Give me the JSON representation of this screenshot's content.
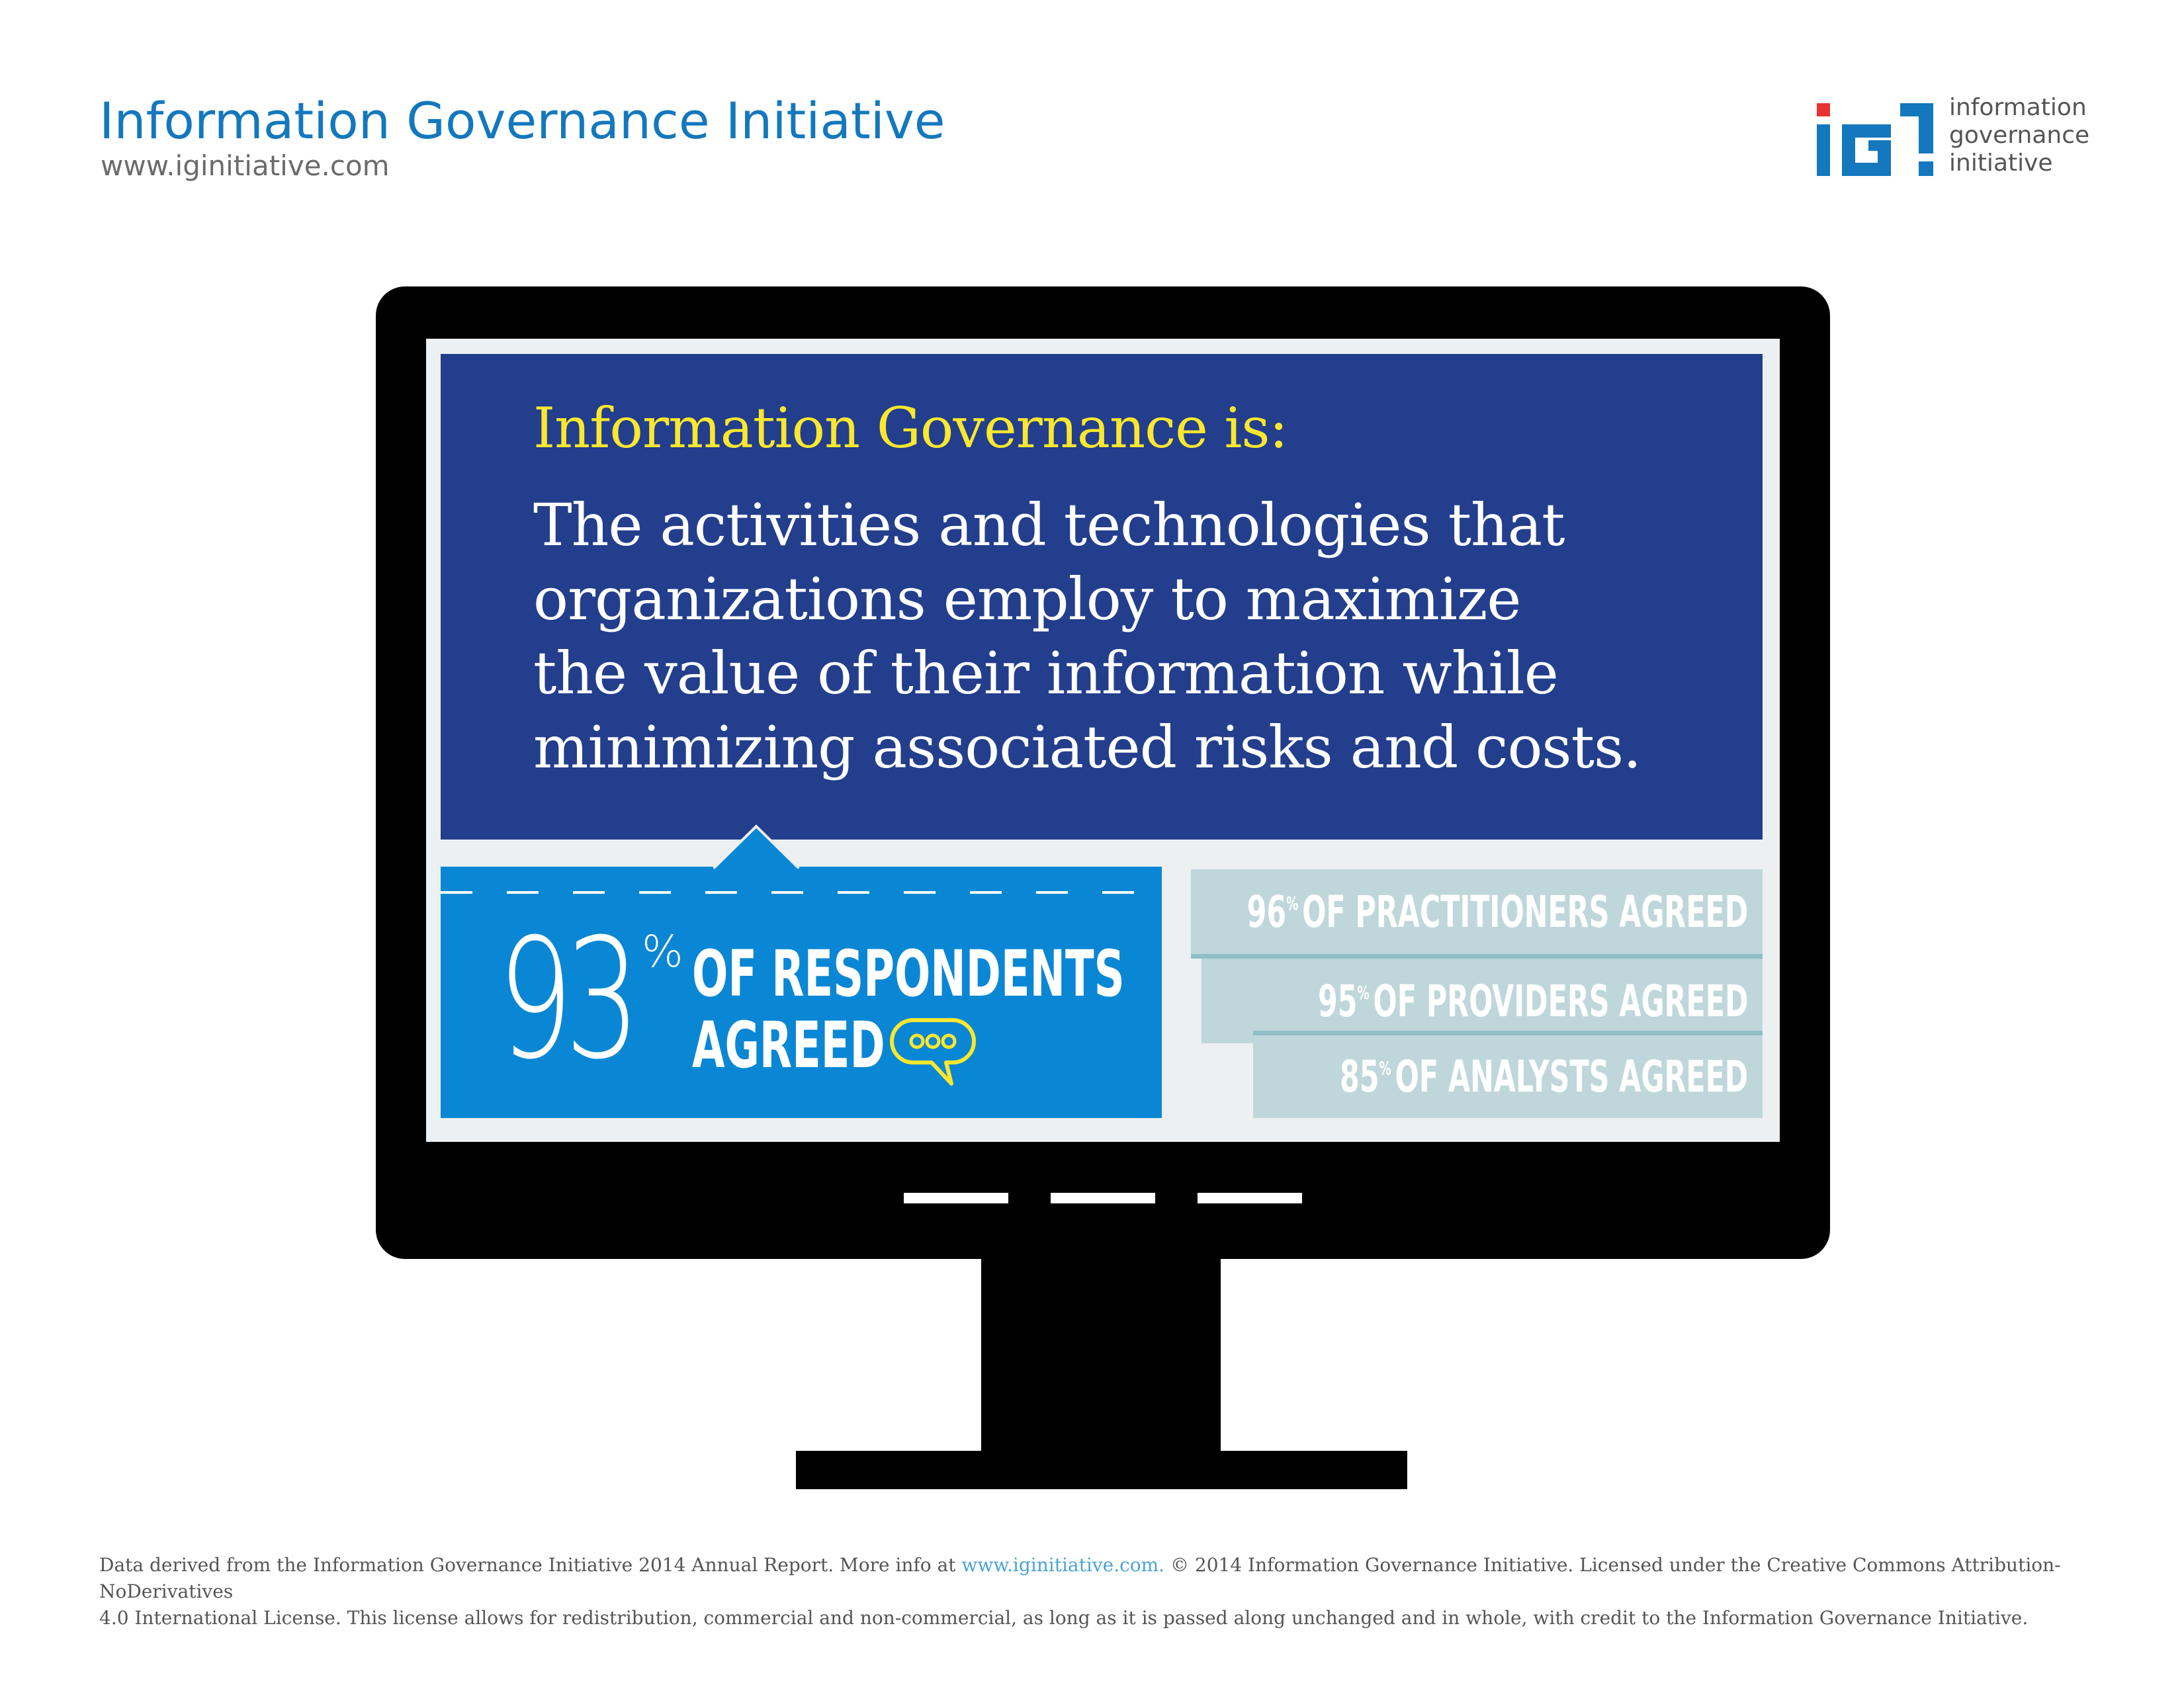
{
  "header": {
    "title": "Information Governance Initiative",
    "url": "www.iginitiative.com"
  },
  "logo": {
    "lines": [
      "information",
      "governance",
      "initiative"
    ],
    "colors": {
      "blue": "#1378bd",
      "red": "#e8342f"
    }
  },
  "definition": {
    "heading": "Information Governance is:",
    "lines": [
      "The activities and technologies that",
      "organizations employ to maximize",
      "the value of their information while",
      "minimizing associated risks and costs."
    ]
  },
  "main_stat": {
    "value": "93",
    "unit": "%",
    "lines": [
      "OF RESPONDENTS",
      "AGREED"
    ],
    "icon": "chat-bubble-icon"
  },
  "sub_stats": [
    {
      "value": "96",
      "unit": "%",
      "text": "OF PRACTITIONERS AGREED"
    },
    {
      "value": "95",
      "unit": "%",
      "text": "OF PROVIDERS AGREED"
    },
    {
      "value": "85",
      "unit": "%",
      "text": "OF ANALYSTS AGREED"
    }
  ],
  "footer": {
    "text_before_link": "Data derived from the Information Governance Initiative 2014 Annual Report. More info at ",
    "link": "www.iginitiative.com.",
    "text_line1_after": " © 2014 Information Governance Initiative. Licensed under the Creative Commons Attribution-NoDerivatives",
    "text_line2": "4.0 International License. This license allows for redistribution, commercial and non-commercial, as long as it is passed along unchanged and in whole, with credit to the Information Governance Initiative."
  },
  "colors": {
    "def_bg": "#233e8c",
    "heading_yellow": "#fbe72e",
    "stat_blue": "#0a87d4",
    "sub_bar": "#bfd7da",
    "screen_bg": "#ecf0f2"
  }
}
